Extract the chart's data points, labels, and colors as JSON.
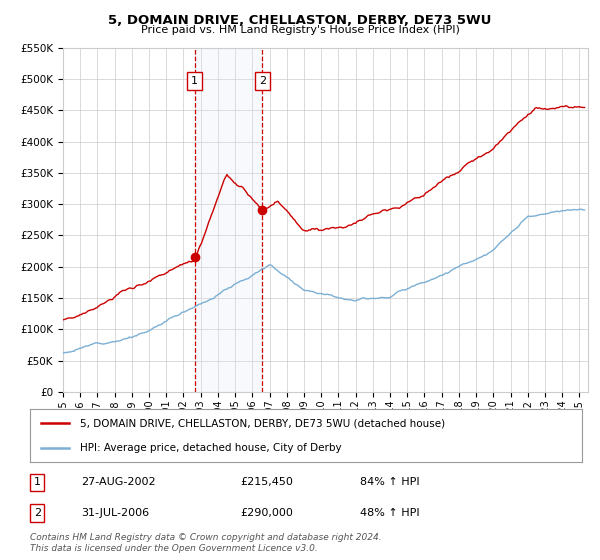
{
  "title": "5, DOMAIN DRIVE, CHELLASTON, DERBY, DE73 5WU",
  "subtitle": "Price paid vs. HM Land Registry's House Price Index (HPI)",
  "ylim": [
    0,
    550000
  ],
  "yticks": [
    0,
    50000,
    100000,
    150000,
    200000,
    250000,
    300000,
    350000,
    400000,
    450000,
    500000,
    550000
  ],
  "ytick_labels": [
    "£0",
    "£50K",
    "£100K",
    "£150K",
    "£200K",
    "£250K",
    "£300K",
    "£350K",
    "£400K",
    "£450K",
    "£500K",
    "£550K"
  ],
  "background_color": "#ffffff",
  "grid_color": "#cccccc",
  "sale1_date": 2002.65,
  "sale1_price": 215450,
  "sale1_label": "1",
  "sale2_date": 2006.58,
  "sale2_price": 290000,
  "sale2_label": "2",
  "red_line_color": "#cc0000",
  "blue_line_color": "#7bafd4",
  "shade_color": "#dce8f5",
  "legend_entry1": "5, DOMAIN DRIVE, CHELLASTON, DERBY, DE73 5WU (detached house)",
  "legend_entry2": "HPI: Average price, detached house, City of Derby",
  "table_row1": [
    "1",
    "27-AUG-2002",
    "£215,450",
    "84% ↑ HPI"
  ],
  "table_row2": [
    "2",
    "31-JUL-2006",
    "£290,000",
    "48% ↑ HPI"
  ],
  "footnote": "Contains HM Land Registry data © Crown copyright and database right 2024.\nThis data is licensed under the Open Government Licence v3.0.",
  "xmin": 1995,
  "xmax": 2025.5
}
